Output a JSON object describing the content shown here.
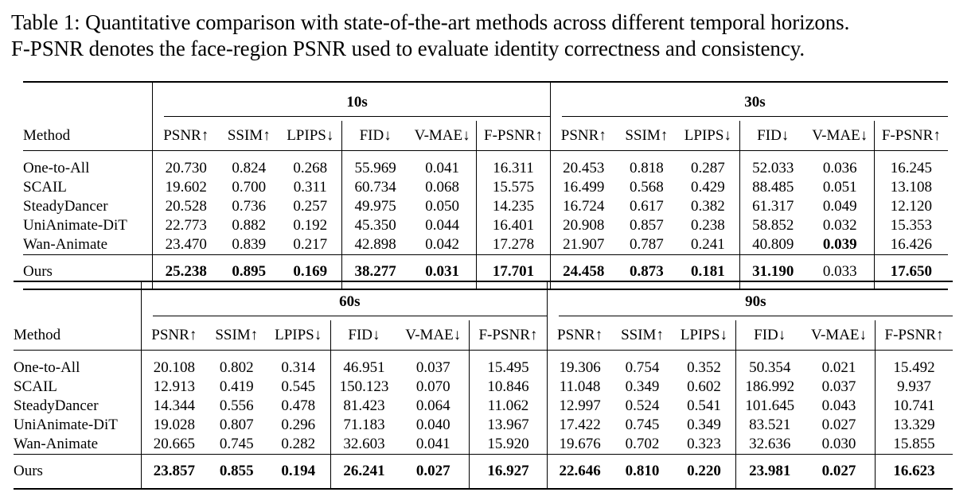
{
  "caption": {
    "line1": "Table 1: Quantitative comparison with state-of-the-art methods across different temporal horizons.",
    "line2": "F-PSNR denotes the face-region PSNR used to evaluate identity correctness and consistency."
  },
  "method_header": "Method",
  "metrics": [
    "PSNR↑",
    "SSIM↑",
    "LPIPS↓",
    "FID↓",
    "V-MAE↓",
    "F-PSNR↑"
  ],
  "top": {
    "horizons": [
      "10s",
      "30s"
    ],
    "rows": [
      {
        "method": "One-to-All",
        "v": [
          "20.730",
          "0.824",
          "0.268",
          "55.969",
          "0.041",
          "16.311",
          "20.453",
          "0.818",
          "0.287",
          "52.033",
          "0.036",
          "16.245"
        ]
      },
      {
        "method": "SCAIL",
        "v": [
          "19.602",
          "0.700",
          "0.311",
          "60.734",
          "0.068",
          "15.575",
          "16.499",
          "0.568",
          "0.429",
          "88.485",
          "0.051",
          "13.108"
        ]
      },
      {
        "method": "SteadyDancer",
        "v": [
          "20.528",
          "0.736",
          "0.257",
          "49.975",
          "0.050",
          "14.235",
          "16.724",
          "0.617",
          "0.382",
          "61.317",
          "0.049",
          "12.120"
        ]
      },
      {
        "method": "UniAnimate-DiT",
        "v": [
          "22.773",
          "0.882",
          "0.192",
          "45.350",
          "0.044",
          "16.401",
          "20.908",
          "0.857",
          "0.238",
          "58.852",
          "0.032",
          "15.353"
        ]
      },
      {
        "method": "Wan-Animate",
        "v": [
          "23.470",
          "0.839",
          "0.217",
          "42.898",
          "0.042",
          "17.278",
          "21.907",
          "0.787",
          "0.241",
          "40.809",
          "0.039",
          "16.426"
        ]
      }
    ],
    "ours": {
      "method": "Ours",
      "v": [
        "25.238",
        "0.895",
        "0.169",
        "38.277",
        "0.031",
        "17.701",
        "24.458",
        "0.873",
        "0.181",
        "31.190",
        "0.033",
        "17.650"
      ]
    }
  },
  "bottom": {
    "horizons": [
      "60s",
      "90s"
    ],
    "rows": [
      {
        "method": "One-to-All",
        "v": [
          "20.108",
          "0.802",
          "0.314",
          "46.951",
          "0.037",
          "15.495",
          "19.306",
          "0.754",
          "0.352",
          "50.354",
          "0.021",
          "15.492"
        ]
      },
      {
        "method": "SCAIL",
        "v": [
          "12.913",
          "0.419",
          "0.545",
          "150.123",
          "0.070",
          "10.846",
          "11.048",
          "0.349",
          "0.602",
          "186.992",
          "0.037",
          "9.937"
        ]
      },
      {
        "method": "SteadyDancer",
        "v": [
          "14.344",
          "0.556",
          "0.478",
          "81.423",
          "0.064",
          "11.062",
          "12.997",
          "0.524",
          "0.541",
          "101.645",
          "0.043",
          "10.741"
        ]
      },
      {
        "method": "UniAnimate-DiT",
        "v": [
          "19.028",
          "0.807",
          "0.296",
          "71.183",
          "0.040",
          "13.967",
          "17.422",
          "0.745",
          "0.349",
          "83.521",
          "0.027",
          "13.329"
        ]
      },
      {
        "method": "Wan-Animate",
        "v": [
          "20.665",
          "0.745",
          "0.282",
          "32.603",
          "0.041",
          "15.920",
          "19.676",
          "0.702",
          "0.323",
          "32.636",
          "0.030",
          "15.855"
        ]
      }
    ],
    "ours": {
      "method": "Ours",
      "v": [
        "23.857",
        "0.855",
        "0.194",
        "26.241",
        "0.027",
        "16.927",
        "22.646",
        "0.810",
        "0.220",
        "23.981",
        "0.027",
        "16.623"
      ]
    }
  }
}
